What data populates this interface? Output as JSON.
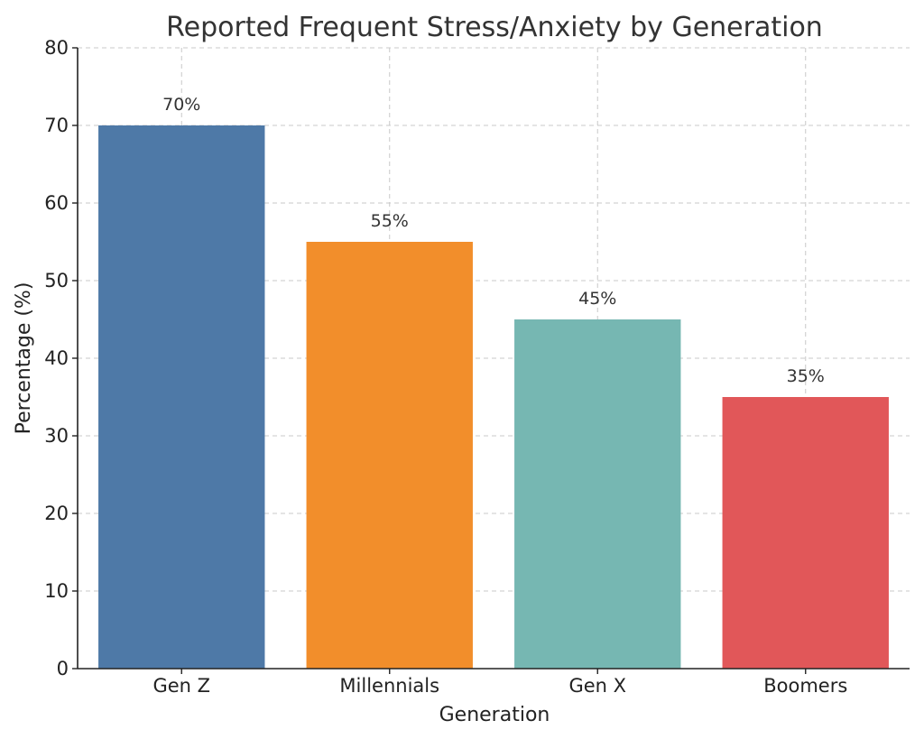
{
  "chart_data": {
    "type": "bar",
    "title": "Reported Frequent Stress/Anxiety by Generation",
    "xlabel": "Generation",
    "ylabel": "Percentage (%)",
    "categories": [
      "Gen Z",
      "Millennials",
      "Gen X",
      "Boomers"
    ],
    "values": [
      70,
      55,
      45,
      35
    ],
    "value_labels": [
      "70%",
      "55%",
      "45%",
      "35%"
    ],
    "colors": [
      "#4e79a7",
      "#f28e2b",
      "#76b7b2",
      "#e15759"
    ],
    "ylim": [
      0,
      80
    ],
    "yticks": [
      0,
      10,
      20,
      30,
      40,
      50,
      60,
      70,
      80
    ],
    "grid": true
  }
}
